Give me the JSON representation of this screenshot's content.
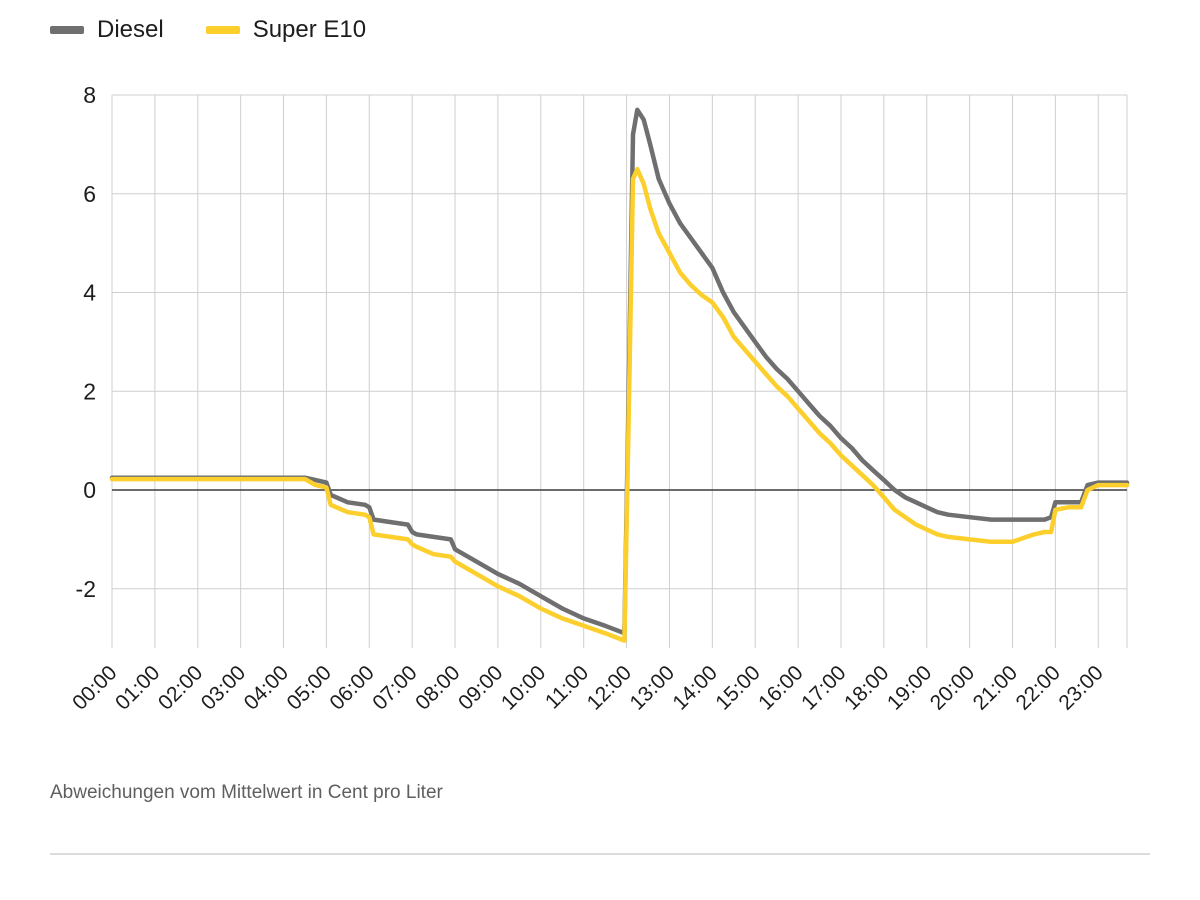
{
  "legend": {
    "items": [
      {
        "label": "Diesel",
        "color": "#6f6f6f"
      },
      {
        "label": "Super E10",
        "color": "#fccf2c"
      }
    ]
  },
  "caption": "Abweichungen vom Mittelwert in Cent pro Liter",
  "chart_data": {
    "type": "line",
    "title": "",
    "xlabel": "",
    "ylabel": "Abweichungen vom Mittelwert in Cent pro Liter",
    "xlim": [
      0,
      23.67
    ],
    "ylim": [
      -3.2,
      8
    ],
    "grid": true,
    "zero_line": true,
    "legend_position": "top-left",
    "y_ticks": [
      -2,
      0,
      2,
      4,
      6,
      8
    ],
    "x_tick_hours": [
      0,
      1,
      2,
      3,
      4,
      5,
      6,
      7,
      8,
      9,
      10,
      11,
      12,
      13,
      14,
      15,
      16,
      17,
      18,
      19,
      20,
      21,
      22,
      23
    ],
    "x_tick_labels": [
      "00:00",
      "01:00",
      "02:00",
      "03:00",
      "04:00",
      "05:00",
      "06:00",
      "07:00",
      "08:00",
      "09:00",
      "10:00",
      "11:00",
      "12:00",
      "13:00",
      "14:00",
      "15:00",
      "16:00",
      "17:00",
      "18:00",
      "19:00",
      "20:00",
      "21:00",
      "22:00",
      "23:00"
    ],
    "x": [
      0,
      0.5,
      1,
      1.5,
      2,
      2.5,
      3,
      3.5,
      4,
      4.5,
      4.75,
      5.0,
      5.1,
      5.5,
      5.9,
      6.0,
      6.1,
      6.5,
      6.9,
      7.0,
      7.1,
      7.5,
      7.9,
      8.0,
      8.2,
      8.5,
      9.0,
      9.5,
      10.0,
      10.5,
      11.0,
      11.5,
      11.8,
      11.95,
      12.05,
      12.15,
      12.25,
      12.4,
      12.55,
      12.75,
      13.0,
      13.25,
      13.5,
      13.75,
      14.0,
      14.25,
      14.5,
      14.75,
      15.0,
      15.25,
      15.5,
      15.75,
      16.0,
      16.25,
      16.5,
      16.75,
      17.0,
      17.25,
      17.5,
      17.75,
      18.0,
      18.25,
      18.5,
      18.75,
      19.0,
      19.25,
      19.5,
      20.0,
      20.5,
      21.0,
      21.5,
      21.75,
      21.9,
      22.0,
      22.3,
      22.6,
      22.75,
      23.0,
      23.3,
      23.67
    ],
    "series": [
      {
        "name": "Diesel",
        "color": "#6f6f6f",
        "values": [
          0.25,
          0.25,
          0.25,
          0.25,
          0.25,
          0.25,
          0.25,
          0.25,
          0.25,
          0.25,
          0.2,
          0.15,
          -0.1,
          -0.25,
          -0.3,
          -0.35,
          -0.6,
          -0.65,
          -0.7,
          -0.85,
          -0.9,
          -0.95,
          -1.0,
          -1.2,
          -1.3,
          -1.45,
          -1.7,
          -1.9,
          -2.15,
          -2.4,
          -2.6,
          -2.75,
          -2.85,
          -2.9,
          2.0,
          7.2,
          7.7,
          7.5,
          7.0,
          6.3,
          5.8,
          5.4,
          5.1,
          4.8,
          4.5,
          4.0,
          3.6,
          3.3,
          3.0,
          2.7,
          2.45,
          2.25,
          2.0,
          1.75,
          1.5,
          1.3,
          1.05,
          0.85,
          0.6,
          0.4,
          0.2,
          0.0,
          -0.15,
          -0.25,
          -0.35,
          -0.45,
          -0.5,
          -0.55,
          -0.6,
          -0.6,
          -0.6,
          -0.6,
          -0.55,
          -0.25,
          -0.25,
          -0.25,
          0.1,
          0.15,
          0.15,
          0.15
        ]
      },
      {
        "name": "Super E10",
        "color": "#fccf2c",
        "values": [
          0.22,
          0.22,
          0.22,
          0.22,
          0.22,
          0.22,
          0.22,
          0.22,
          0.22,
          0.22,
          0.1,
          0.05,
          -0.3,
          -0.45,
          -0.5,
          -0.55,
          -0.9,
          -0.95,
          -1.0,
          -1.1,
          -1.15,
          -1.3,
          -1.35,
          -1.45,
          -1.55,
          -1.7,
          -1.95,
          -2.15,
          -2.4,
          -2.6,
          -2.75,
          -2.9,
          -3.0,
          -3.05,
          1.5,
          6.3,
          6.5,
          6.2,
          5.7,
          5.2,
          4.8,
          4.4,
          4.15,
          3.95,
          3.8,
          3.5,
          3.1,
          2.85,
          2.6,
          2.35,
          2.1,
          1.9,
          1.65,
          1.4,
          1.15,
          0.95,
          0.7,
          0.5,
          0.3,
          0.1,
          -0.15,
          -0.4,
          -0.55,
          -0.7,
          -0.8,
          -0.9,
          -0.95,
          -1.0,
          -1.05,
          -1.05,
          -0.9,
          -0.85,
          -0.85,
          -0.4,
          -0.35,
          -0.35,
          0.0,
          0.1,
          0.1,
          0.1
        ]
      }
    ]
  }
}
